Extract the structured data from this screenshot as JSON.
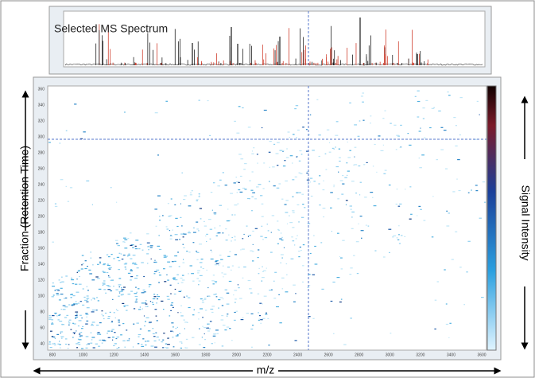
{
  "spectrum": {
    "title": "Selected MS Spectrum"
  },
  "heatmap": {
    "y_axis_label": "Fraction (Retention Time)",
    "x_axis_label": "m/z",
    "colorbar_label": "Signal Intensity",
    "yticks": [
      40,
      60,
      80,
      100,
      120,
      140,
      160,
      180,
      200,
      220,
      240,
      260,
      280,
      300,
      320,
      340,
      360
    ],
    "xticks": [
      800,
      1000,
      1200,
      1400,
      1600,
      1800,
      2000,
      2200,
      2400,
      2600,
      2800,
      3000,
      3200,
      3400,
      3600
    ]
  }
}
